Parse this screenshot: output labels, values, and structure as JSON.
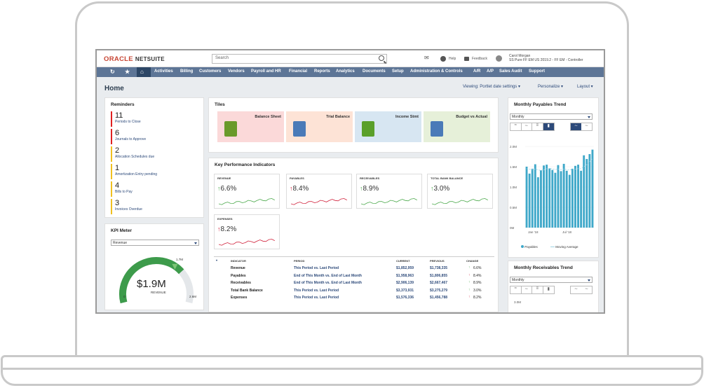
{
  "app": {
    "logo_oracle": "ORACLE",
    "logo_netsuite": "NETSUITE",
    "search_placeholder": "Search",
    "help": "Help",
    "feedback": "Feedback",
    "user_name": "Carol Morgan",
    "user_role": "SS Pure FF EM US 2019.2 - FF EM - Controller"
  },
  "nav": {
    "items": [
      "Activities",
      "Billing",
      "Customers",
      "Vendors",
      "Payroll and HR",
      "Financial",
      "Reports",
      "Analytics",
      "Documents",
      "Setup",
      "Administration & Controls",
      "A/R",
      "A/P",
      "Sales Audit",
      "Support"
    ]
  },
  "page": {
    "title": "Home",
    "viewing": "Viewing: Portlet date settings",
    "personalize": "Personalize",
    "layout": "Layout"
  },
  "reminders": {
    "title": "Reminders",
    "items": [
      {
        "count": "11",
        "label": "Periods to Close",
        "color": "#e02020"
      },
      {
        "count": "6",
        "label": "Journals to Approve",
        "color": "#e02020"
      },
      {
        "count": "2",
        "label": "Allocation Schedules due",
        "color": "#f0c020"
      },
      {
        "count": "1",
        "label": "Amortization Entry pending",
        "color": "#f0c020"
      },
      {
        "count": "4",
        "label": "Bills to Pay",
        "color": "#f0c020"
      },
      {
        "count": "3",
        "label": "Invoices Overdue",
        "color": "#f0c020"
      }
    ]
  },
  "kpi_meter": {
    "title": "KPI Meter",
    "select": "Revenue",
    "value": "$1.9M",
    "label": "REVENUE",
    "min": "0",
    "max": "2.6M",
    "target": "1.7M",
    "fraction": 0.73
  },
  "tiles": {
    "title": "Tiles",
    "items": [
      {
        "name": "Balance Sheet",
        "bg": "#fbd9d9",
        "icon_color": "#6a9a2a"
      },
      {
        "name": "Trial Balance",
        "bg": "#fde3d6",
        "icon_color": "#4a7ab8"
      },
      {
        "name": "Income Stmt",
        "bg": "#d7e6f2",
        "icon_color": "#5aa02a"
      },
      {
        "name": "Budget vs Actual",
        "bg": "#e6f0d9",
        "icon_color": "#4a7ab8"
      }
    ]
  },
  "kpi": {
    "title": "Key Performance Indicators",
    "cards": [
      {
        "name": "REVENUE",
        "value": "6.6%",
        "color": "#4aa84a"
      },
      {
        "name": "PAYABLES",
        "value": "8.4%",
        "color": "#d0203a"
      },
      {
        "name": "RECEIVABLES",
        "value": "8.9%",
        "color": "#4aa84a"
      },
      {
        "name": "TOTAL BANK BALANCE",
        "value": "3.0%",
        "color": "#4aa84a"
      },
      {
        "name": "EXPENSES",
        "value": "8.2%",
        "color": "#d0203a"
      }
    ],
    "headers": {
      "indicator": "INDICATOR",
      "period": "PERIOD",
      "current": "CURRENT",
      "previous": "PREVIOUS",
      "change": "CHANGE"
    },
    "rows": [
      {
        "indicator": "Revenue",
        "period": "This Period vs. Last Period",
        "current": "$1,852,959",
        "previous": "$1,738,335",
        "change": "6.6%",
        "up_good": true
      },
      {
        "indicator": "Payables",
        "period": "End of This Month vs. End of Last Month",
        "current": "$1,958,963",
        "previous": "$1,806,855",
        "change": "8.4%",
        "up_good": false
      },
      {
        "indicator": "Receivables",
        "period": "End of This Month vs. End of Last Month",
        "current": "$2,906,139",
        "previous": "$2,667,467",
        "change": "8.9%",
        "up_good": true
      },
      {
        "indicator": "Total Bank Balance",
        "period": "This Period vs. Last Period",
        "current": "$3,373,931",
        "previous": "$3,275,279",
        "change": "3.0%",
        "up_good": true
      },
      {
        "indicator": "Expenses",
        "period": "This Period vs. Last Period",
        "current": "$1,576,336",
        "previous": "$1,456,788",
        "change": "8.2%",
        "up_good": false
      }
    ]
  },
  "payables_trend": {
    "title": "Monthly Payables Trend",
    "select": "Monthly",
    "legend_bar": "Payables",
    "legend_line": "Moving Average"
  },
  "receivables_trend": {
    "title": "Monthly Receivables Trend",
    "select": "Monthly",
    "ytick": "3.0M"
  },
  "chart_data": {
    "type": "bar",
    "title": "Monthly Payables Trend",
    "ylim": [
      0,
      2.0
    ],
    "yticks": [
      "0M",
      "0.5M",
      "1.0M",
      "1.5M",
      "2.0M"
    ],
    "xticks": [
      "Jan '18",
      "Jul '18"
    ],
    "series": [
      {
        "name": "Payables",
        "values": [
          1.5,
          1.33,
          1.45,
          1.56,
          1.24,
          1.41,
          1.53,
          1.55,
          1.46,
          1.42,
          1.35,
          1.54,
          1.39,
          1.57,
          1.4,
          1.3,
          1.45,
          1.52,
          1.55,
          1.4,
          1.78,
          1.69,
          1.81,
          1.92
        ]
      },
      {
        "name": "Moving Average",
        "values": [
          1.45,
          1.44,
          1.43,
          1.44,
          1.42,
          1.41,
          1.42,
          1.45,
          1.45,
          1.45,
          1.43,
          1.44,
          1.43,
          1.44,
          1.43,
          1.42,
          1.43,
          1.44,
          1.45,
          1.45,
          1.5,
          1.55,
          1.62,
          1.7
        ]
      }
    ]
  }
}
